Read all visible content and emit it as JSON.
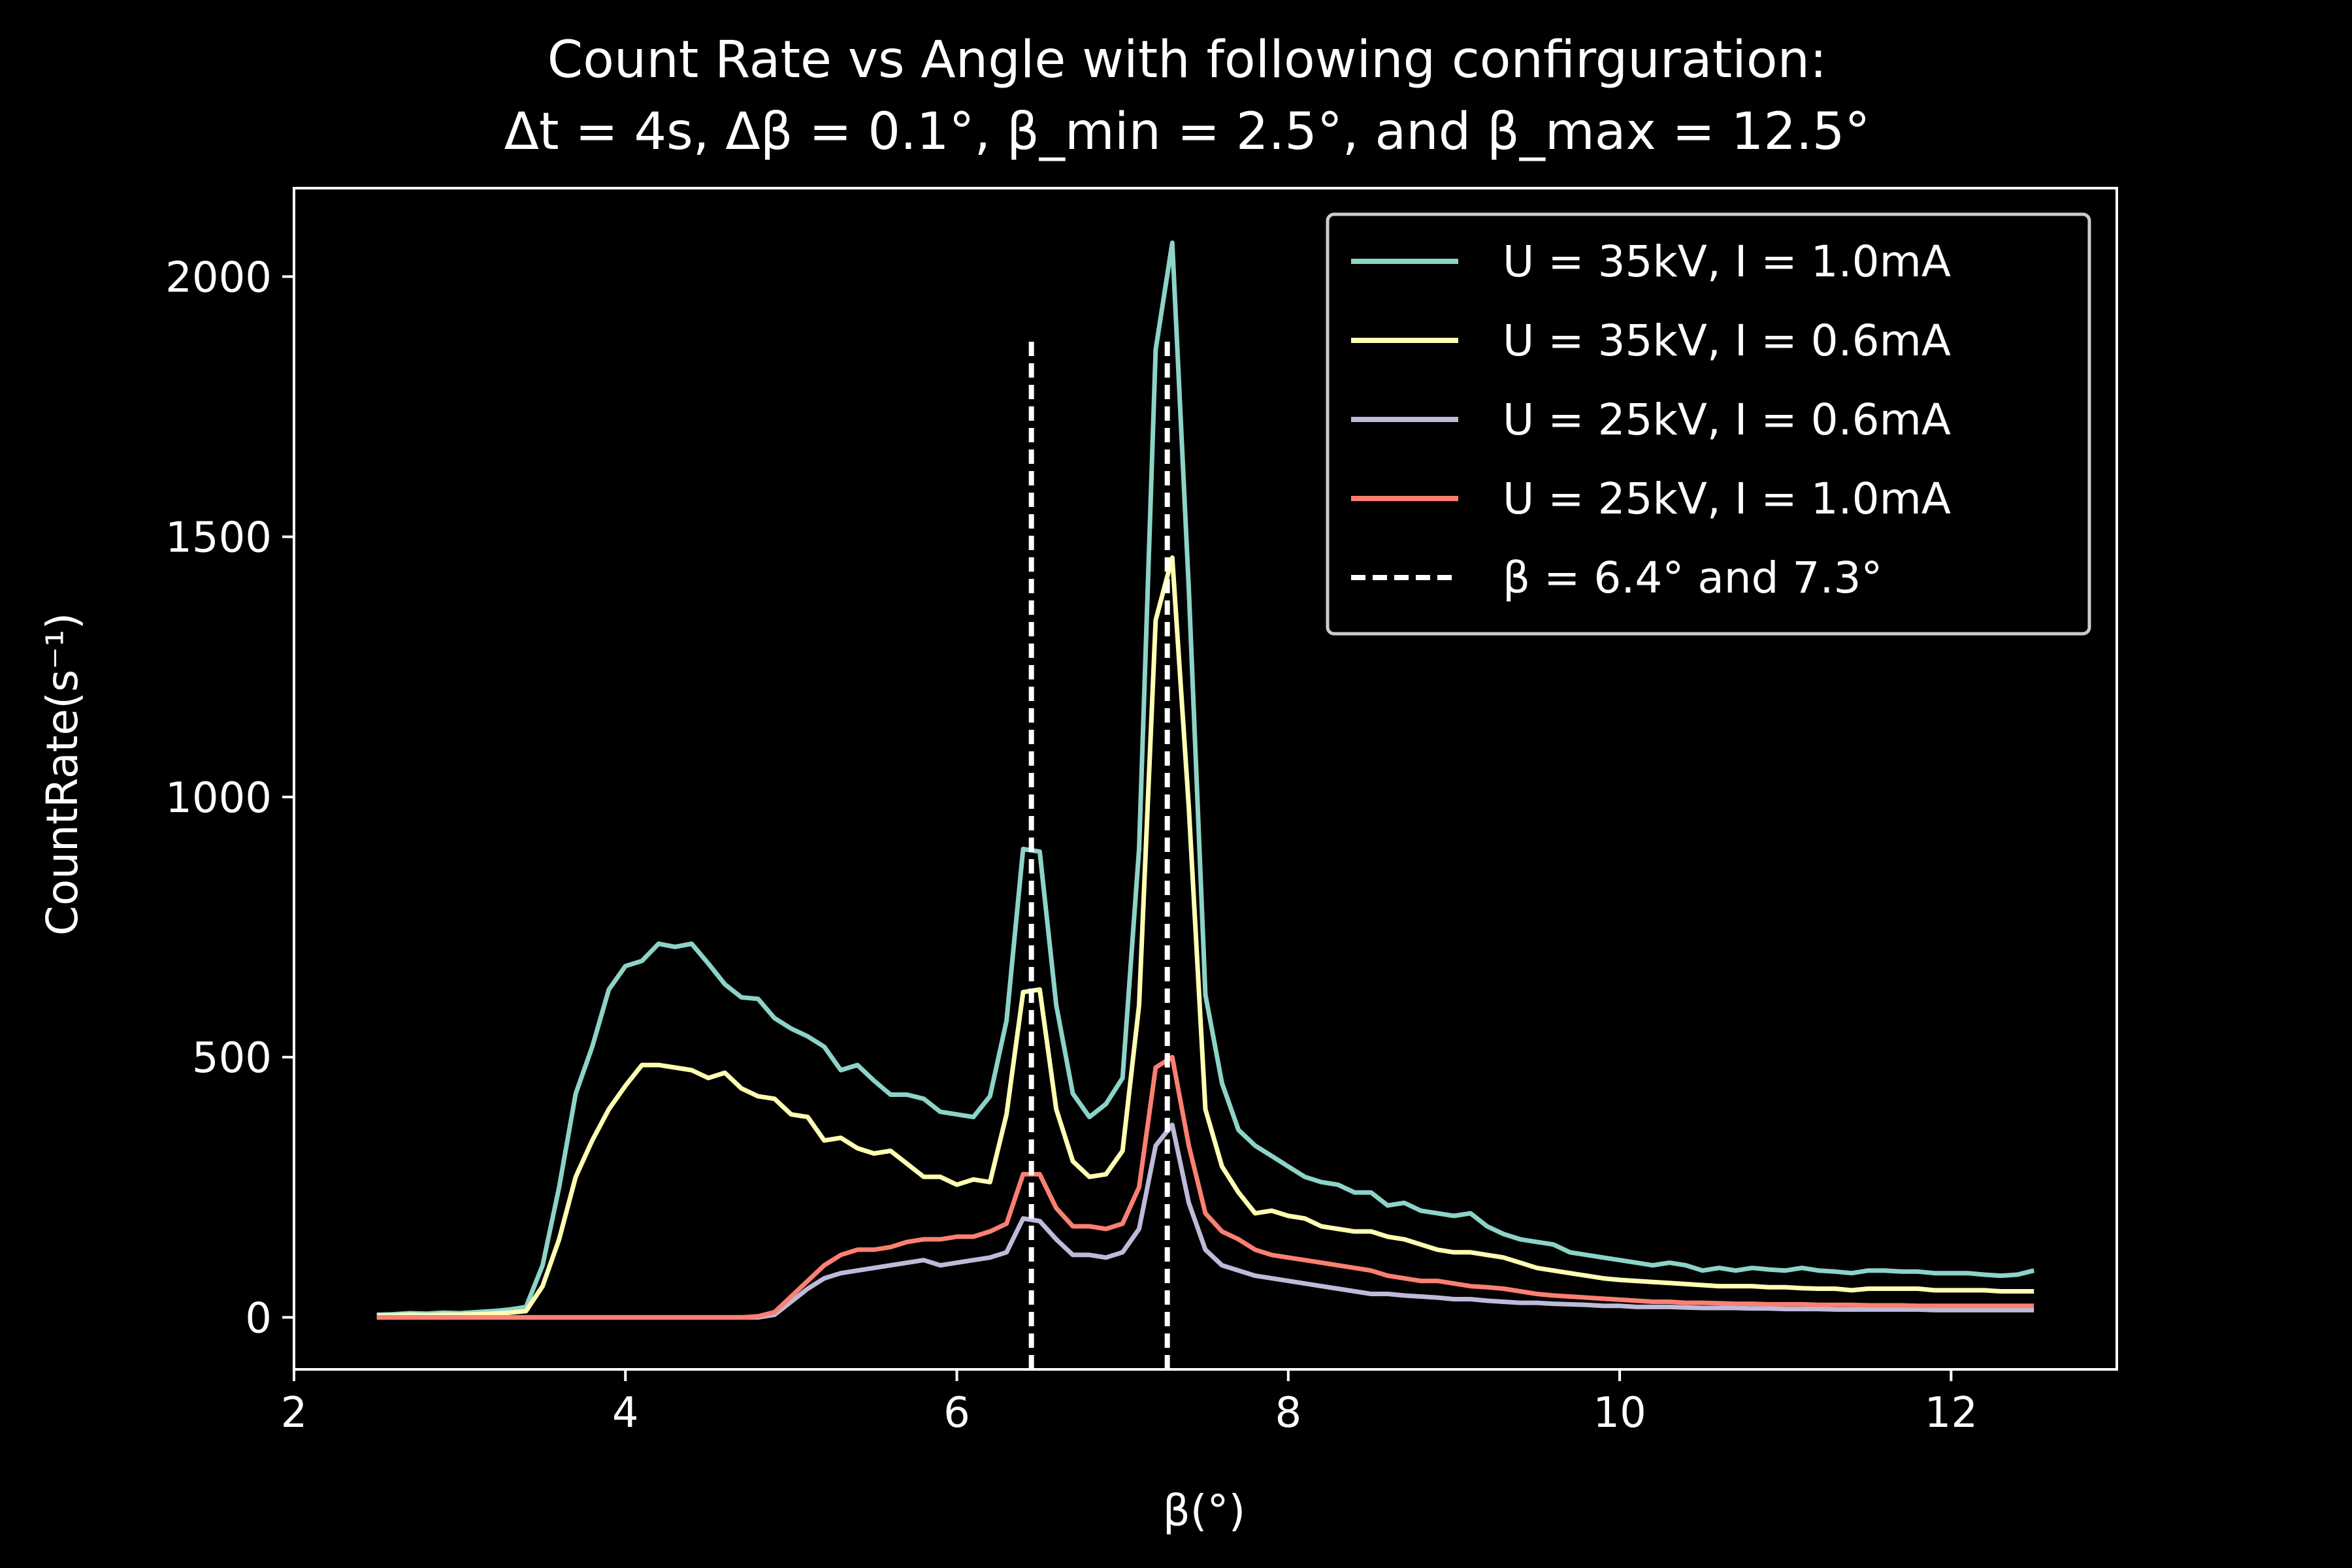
{
  "chart_data": {
    "type": "line",
    "title_line1": "Count Rate vs Angle with following confirguration:",
    "title_line2": "Δt = 4s, Δβ = 0.1°, β_min = 2.5°,  and β_max = 12.5°",
    "xlabel": "β(°)",
    "ylabel": "CountRate(s⁻¹)",
    "xlim": [
      2,
      13
    ],
    "ylim": [
      -100,
      2170
    ],
    "xticks": [
      2,
      4,
      6,
      8,
      10,
      12
    ],
    "yticks": [
      0,
      500,
      1000,
      1500,
      2000
    ],
    "legend_position": "top-right",
    "grid": false,
    "x": [
      2.5,
      2.6,
      2.7,
      2.8,
      2.9,
      3.0,
      3.1,
      3.2,
      3.3,
      3.4,
      3.5,
      3.6,
      3.7,
      3.8,
      3.9,
      4.0,
      4.1,
      4.2,
      4.3,
      4.4,
      4.5,
      4.6,
      4.7,
      4.8,
      4.9,
      5.0,
      5.1,
      5.2,
      5.3,
      5.4,
      5.5,
      5.6,
      5.7,
      5.8,
      5.9,
      6.0,
      6.1,
      6.2,
      6.3,
      6.4,
      6.5,
      6.6,
      6.7,
      6.8,
      6.9,
      7.0,
      7.1,
      7.2,
      7.3,
      7.4,
      7.5,
      7.6,
      7.7,
      7.8,
      7.9,
      8.0,
      8.1,
      8.2,
      8.3,
      8.4,
      8.5,
      8.6,
      8.7,
      8.8,
      8.9,
      9.0,
      9.1,
      9.2,
      9.3,
      9.4,
      9.5,
      9.6,
      9.7,
      9.8,
      9.9,
      10.0,
      10.1,
      10.2,
      10.3,
      10.4,
      10.5,
      10.6,
      10.7,
      10.8,
      10.9,
      11.0,
      11.1,
      11.2,
      11.3,
      11.4,
      11.5,
      11.6,
      11.7,
      11.8,
      11.9,
      12.0,
      12.1,
      12.2,
      12.3,
      12.4,
      12.5
    ],
    "series": [
      {
        "name": "U = 35kV, I = 1.0mA",
        "color": "#8dd3c7",
        "values": [
          5,
          6,
          8,
          7,
          9,
          8,
          10,
          12,
          15,
          20,
          100,
          250,
          430,
          520,
          630,
          675,
          685,
          718,
          712,
          718,
          680,
          640,
          615,
          612,
          575,
          555,
          540,
          520,
          475,
          485,
          455,
          428,
          428,
          420,
          395,
          390,
          385,
          425,
          570,
          900,
          895,
          600,
          430,
          385,
          410,
          460,
          900,
          1860,
          2065,
          1400,
          620,
          450,
          360,
          330,
          310,
          290,
          270,
          260,
          255,
          240,
          240,
          215,
          220,
          205,
          200,
          195,
          200,
          175,
          160,
          150,
          145,
          140,
          125,
          120,
          115,
          110,
          105,
          100,
          105,
          100,
          90,
          95,
          90,
          95,
          92,
          90,
          95,
          90,
          88,
          85,
          90,
          90,
          88,
          88,
          85,
          85,
          85,
          82,
          80,
          82,
          90
        ]
      },
      {
        "name": "U = 35kV, I = 0.6mA",
        "color": "#ffffb3",
        "values": [
          3,
          4,
          5,
          4,
          5,
          5,
          6,
          7,
          9,
          12,
          60,
          150,
          270,
          340,
          400,
          445,
          485,
          485,
          480,
          475,
          460,
          470,
          440,
          425,
          420,
          390,
          385,
          340,
          345,
          325,
          315,
          320,
          295,
          270,
          270,
          255,
          265,
          260,
          390,
          625,
          630,
          400,
          300,
          270,
          275,
          320,
          600,
          1340,
          1460,
          980,
          400,
          290,
          240,
          200,
          205,
          195,
          190,
          175,
          170,
          165,
          165,
          155,
          150,
          140,
          130,
          125,
          125,
          120,
          115,
          105,
          95,
          90,
          85,
          80,
          75,
          72,
          70,
          68,
          66,
          64,
          62,
          60,
          60,
          60,
          58,
          58,
          56,
          55,
          55,
          52,
          55,
          55,
          55,
          55,
          52,
          52,
          52,
          52,
          50,
          50,
          50
        ]
      },
      {
        "name": "U = 25kV, I = 0.6mA",
        "color": "#bebada",
        "values": [
          0,
          0,
          0,
          0,
          0,
          0,
          0,
          0,
          0,
          0,
          0,
          0,
          0,
          0,
          0,
          0,
          0,
          0,
          0,
          0,
          0,
          0,
          0,
          0,
          5,
          30,
          55,
          75,
          85,
          90,
          95,
          100,
          105,
          110,
          100,
          105,
          110,
          115,
          125,
          190,
          185,
          150,
          120,
          120,
          115,
          125,
          170,
          330,
          370,
          220,
          130,
          100,
          90,
          80,
          75,
          70,
          65,
          60,
          55,
          50,
          45,
          45,
          42,
          40,
          38,
          35,
          35,
          32,
          30,
          28,
          28,
          26,
          25,
          24,
          22,
          22,
          20,
          20,
          20,
          19,
          18,
          18,
          18,
          17,
          17,
          16,
          16,
          16,
          15,
          15,
          15,
          15,
          15,
          15,
          14,
          14,
          14,
          14,
          14,
          14,
          14
        ]
      },
      {
        "name": "U = 25kV, I = 1.0mA",
        "color": "#fb8072",
        "values": [
          0,
          0,
          0,
          0,
          0,
          0,
          0,
          0,
          0,
          0,
          0,
          0,
          0,
          0,
          0,
          0,
          0,
          0,
          0,
          0,
          0,
          0,
          0,
          2,
          10,
          40,
          70,
          100,
          120,
          130,
          130,
          135,
          145,
          150,
          150,
          155,
          155,
          165,
          180,
          275,
          275,
          210,
          175,
          175,
          170,
          180,
          250,
          480,
          500,
          330,
          200,
          165,
          150,
          130,
          120,
          115,
          110,
          105,
          100,
          95,
          90,
          80,
          75,
          70,
          70,
          65,
          60,
          58,
          55,
          50,
          45,
          42,
          40,
          38,
          36,
          34,
          32,
          30,
          30,
          28,
          28,
          27,
          26,
          26,
          25,
          25,
          25,
          24,
          24,
          24,
          23,
          23,
          23,
          22,
          22,
          22,
          22,
          22,
          22,
          22,
          22
        ]
      }
    ],
    "vlines": {
      "label": "β = 6.4° and 7.3°",
      "color": "#ffffff",
      "x": [
        6.45,
        7.27
      ],
      "y_range": [
        -100,
        1880
      ]
    }
  }
}
